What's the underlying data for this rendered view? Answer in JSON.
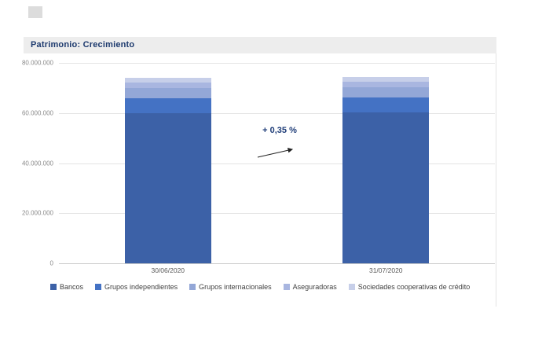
{
  "header": {
    "title": "Patrimonio: Crecimiento"
  },
  "chart_data": {
    "type": "bar",
    "stacked": true,
    "title": "Patrimonio: Crecimiento",
    "categories": [
      "30/06/2020",
      "31/07/2020"
    ],
    "series": [
      {
        "name": "Bancos",
        "color": "#3c61a7",
        "values": [
          60000000,
          60200000
        ]
      },
      {
        "name": "Grupos independientes",
        "color": "#4472c4",
        "values": [
          6000000,
          6030000
        ]
      },
      {
        "name": "Grupos internacionales",
        "color": "#93a7d7",
        "values": [
          4000000,
          4020000
        ]
      },
      {
        "name": "Aseguradoras",
        "color": "#a9b6e0",
        "values": [
          2300000,
          2310000
        ]
      },
      {
        "name": "Sociedades cooperativas de crédito",
        "color": "#c7cfe9",
        "values": [
          1750000,
          1760000
        ]
      }
    ],
    "annotation": "+ 0,35 %",
    "ylim": [
      0,
      80000000
    ],
    "yticks": [
      {
        "label": "80.000.000",
        "value": 80000000
      },
      {
        "label": "60.000.000",
        "value": 60000000
      },
      {
        "label": "40.000.000",
        "value": 40000000
      },
      {
        "label": "20.000.000",
        "value": 20000000
      },
      {
        "label": "0",
        "value": 0
      }
    ],
    "grid": true,
    "legend_position": "bottom"
  }
}
